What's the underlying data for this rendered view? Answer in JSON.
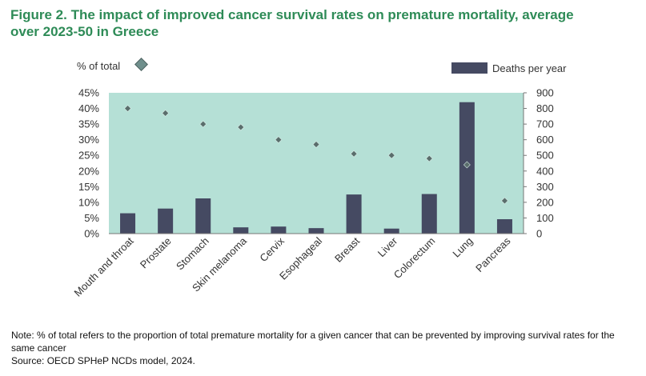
{
  "title": {
    "line1": "Figure 2. The impact of improved cancer survival rates on premature mortality, average",
    "line2": "over 2023-50 in Greece"
  },
  "note": {
    "line1": "Note: % of total refers to the proportion of total premature mortality for a given cancer that can be prevented by improving survival rates for the",
    "line2": "same cancer",
    "source": "Source: OECD SPHeP NCDs model, 2024."
  },
  "colors": {
    "plot_background": "#b5e0d6",
    "bars": "#454a62",
    "markers": "#5a6e6c",
    "title": "#2e8b57"
  },
  "chart_data": {
    "type": "bar",
    "categories": [
      "Mouth and throat",
      "Prostate",
      "Stomach",
      "Skin melanoma",
      "Cervix",
      "Esophageal",
      "Breast",
      "Liver",
      "Colorectum",
      "Lung",
      "Pancreas"
    ],
    "series": [
      {
        "name": "Deaths per year",
        "type": "bar",
        "axis": "right",
        "values": [
          130,
          160,
          225,
          40,
          45,
          35,
          250,
          32,
          253,
          840,
          92
        ]
      },
      {
        "name": "% of total",
        "type": "scatter",
        "axis": "left",
        "values": [
          40,
          38.5,
          35,
          34,
          30,
          28.5,
          25.5,
          25,
          24,
          22,
          10.5
        ]
      }
    ],
    "y_left": {
      "label": "% of total",
      "ylim": [
        0,
        45
      ],
      "ticks": [
        "0%",
        "5%",
        "10%",
        "15%",
        "20%",
        "25%",
        "30%",
        "35%",
        "40%",
        "45%"
      ]
    },
    "y_right": {
      "label": "Deaths per year",
      "ylim": [
        0,
        900
      ],
      "ticks": [
        "0",
        "100",
        "200",
        "300",
        "400",
        "500",
        "600",
        "700",
        "800",
        "900"
      ]
    },
    "grid": false,
    "legend": "top"
  }
}
